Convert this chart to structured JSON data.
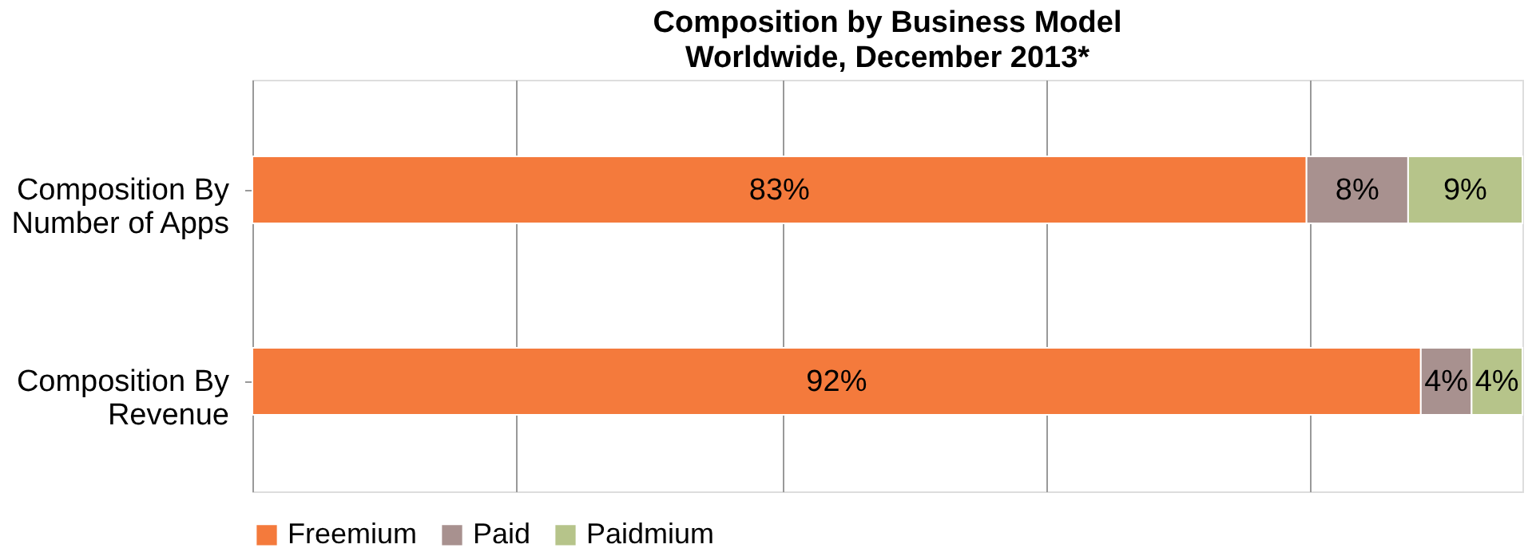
{
  "chart_data": {
    "type": "bar",
    "orientation": "horizontal",
    "stacked": true,
    "title": "Composition by Business Model",
    "subtitle": "Worldwide, December 2013*",
    "categories": [
      "Composition By Number of Apps",
      "Composition By Revenue"
    ],
    "series": [
      {
        "name": "Freemium",
        "color": "#f47a3c",
        "values": [
          83,
          92
        ],
        "value_labels": [
          "83%",
          "92%"
        ]
      },
      {
        "name": "Paid",
        "color": "#a8918f",
        "values": [
          8,
          4
        ],
        "value_labels": [
          "8%",
          "4%"
        ]
      },
      {
        "name": "Paidmium",
        "color": "#b6c48a",
        "values": [
          9,
          4
        ],
        "value_labels": [
          "9%",
          "4%"
        ]
      }
    ],
    "xlim": [
      0,
      100
    ],
    "xticks": [
      {
        "value": 0,
        "label": null
      },
      {
        "value": 20.8,
        "label": null
      },
      {
        "value": 41.7,
        "label": null
      },
      {
        "value": 62.5,
        "label": null
      },
      {
        "value": 83.3,
        "label": null
      }
    ],
    "tick_labels": "y",
    "grid": "x",
    "legend": "bottom"
  }
}
